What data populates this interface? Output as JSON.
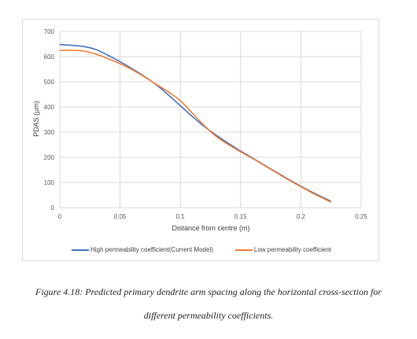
{
  "chart_data": {
    "type": "line",
    "title": "",
    "xlabel": "Distance from centre (m)",
    "ylabel": "PDAS (µm)",
    "xlim": [
      0,
      0.25
    ],
    "ylim": [
      0,
      700
    ],
    "x_ticks": [
      "0",
      "0.05",
      "0.1",
      "0.15",
      "0.2",
      "0.25"
    ],
    "y_ticks": [
      "0",
      "100",
      "200",
      "300",
      "400",
      "500",
      "600",
      "700"
    ],
    "grid": true,
    "legend_position": "bottom",
    "series": [
      {
        "name": "High permeability coefficient(Current Model)",
        "color": "#4472C4",
        "x": [
          0,
          0.01,
          0.02,
          0.03,
          0.04,
          0.05,
          0.06,
          0.07,
          0.08,
          0.09,
          0.1,
          0.11,
          0.12,
          0.13,
          0.14,
          0.15,
          0.16,
          0.17,
          0.18,
          0.19,
          0.2,
          0.21,
          0.225
        ],
        "y": [
          648,
          645,
          640,
          628,
          605,
          580,
          552,
          522,
          488,
          448,
          405,
          362,
          322,
          287,
          255,
          225,
          197,
          168,
          140,
          112,
          85,
          60,
          25
        ]
      },
      {
        "name": "Low permeability coefficient",
        "color": "#ED7D31",
        "x": [
          0,
          0.01,
          0.02,
          0.03,
          0.04,
          0.05,
          0.06,
          0.07,
          0.08,
          0.09,
          0.1,
          0.11,
          0.12,
          0.13,
          0.14,
          0.15,
          0.16,
          0.17,
          0.18,
          0.19,
          0.2,
          0.21,
          0.225
        ],
        "y": [
          625,
          625,
          622,
          610,
          592,
          572,
          548,
          520,
          490,
          460,
          425,
          375,
          325,
          282,
          250,
          222,
          195,
          167,
          138,
          110,
          83,
          57,
          22
        ]
      }
    ]
  },
  "caption": {
    "line1": "Figure 4.18: Predicted primary dendrite arm spacing along the horizontal cross-section for",
    "line2": "different permeability coefficients."
  }
}
